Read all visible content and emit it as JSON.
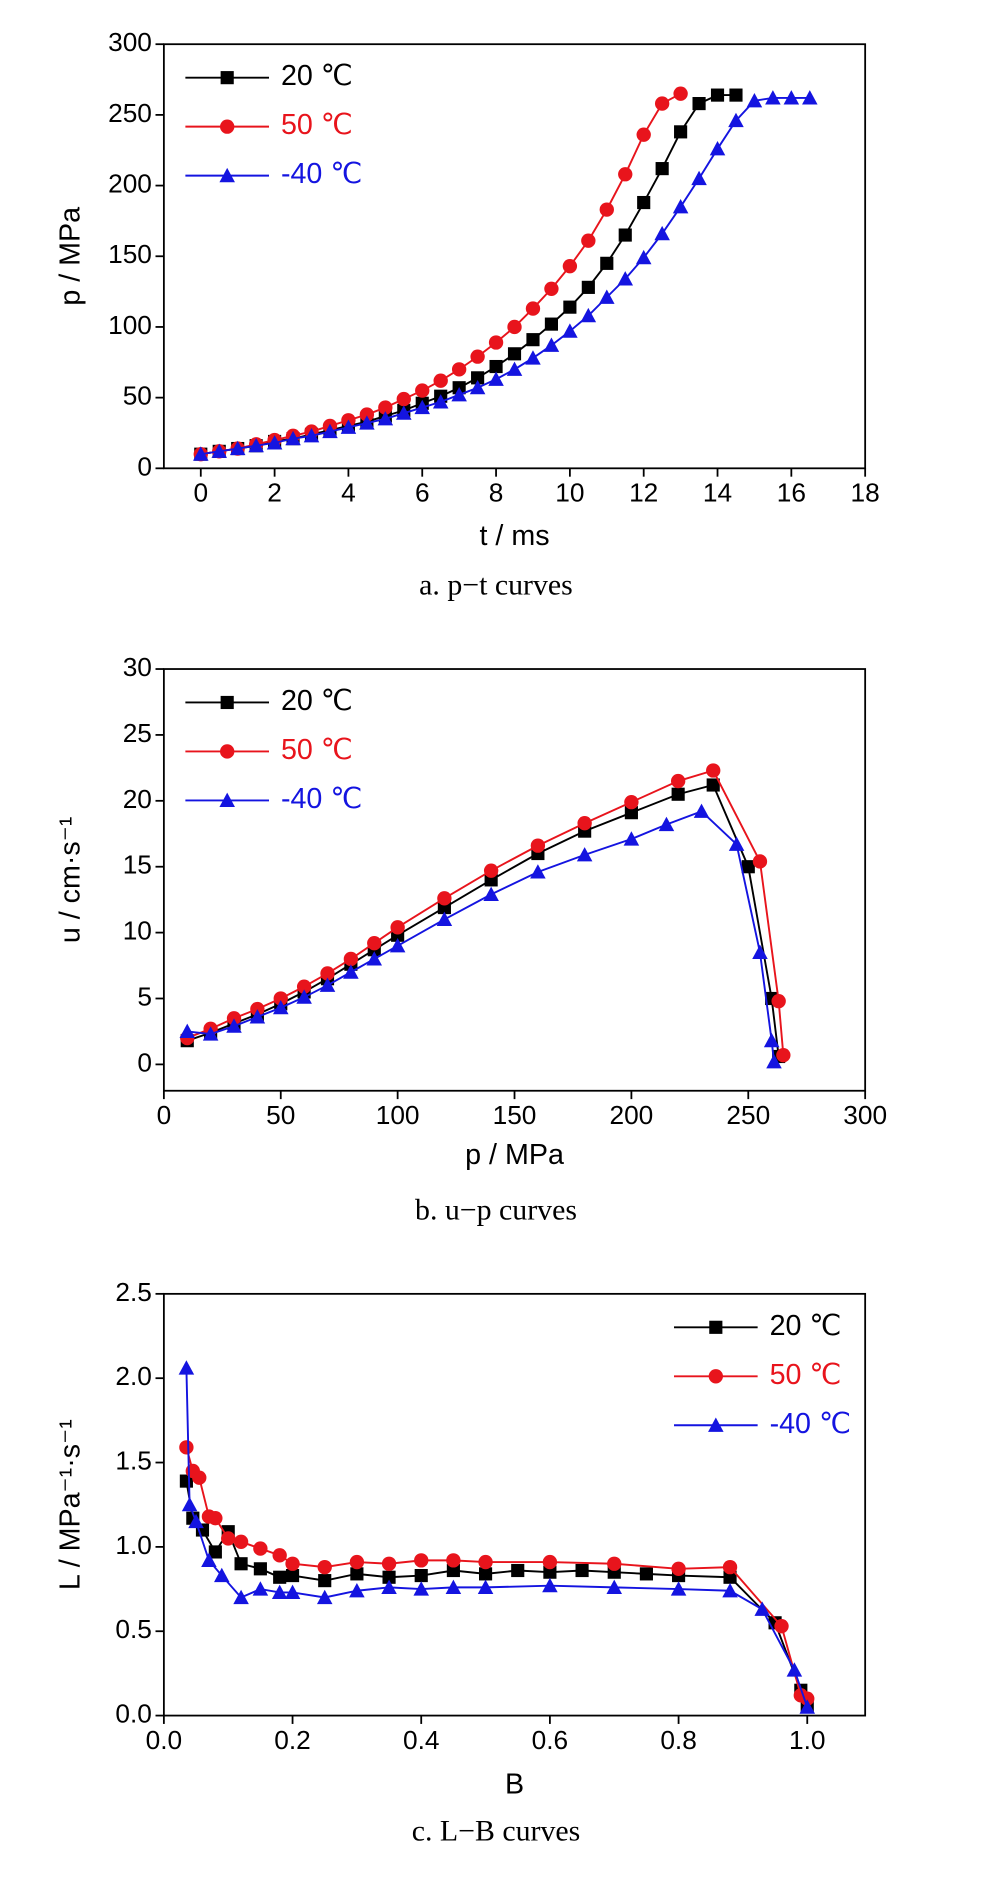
{
  "chart_data": [
    {
      "type": "line",
      "caption": "a.    p−t curves",
      "xlabel": "t / ms",
      "ylabel": "p / MPa",
      "xlim": [
        -1,
        18
      ],
      "ylim": [
        0,
        300
      ],
      "xticks": [
        0,
        2,
        4,
        6,
        8,
        10,
        12,
        14,
        16,
        18
      ],
      "yticks": [
        0,
        50,
        100,
        150,
        200,
        250,
        300
      ],
      "legend": "upper left",
      "series": [
        {
          "name": "20 ℃",
          "color": "#000000",
          "marker": "square",
          "x": [
            0,
            0.5,
            1,
            1.5,
            2,
            2.5,
            3,
            3.5,
            4,
            4.5,
            5,
            5.5,
            6,
            6.5,
            7,
            7.5,
            8,
            8.5,
            9,
            9.5,
            10,
            10.5,
            11,
            11.5,
            12,
            12.5,
            13,
            13.5,
            14,
            14.5
          ],
          "values": [
            10,
            12,
            14,
            16,
            19,
            21,
            24,
            27,
            30,
            33,
            37,
            41,
            46,
            51,
            57,
            64,
            72,
            81,
            91,
            102,
            114,
            128,
            145,
            165,
            188,
            212,
            238,
            258,
            264,
            264
          ]
        },
        {
          "name": "50 ℃",
          "color": "#e8141c",
          "marker": "circle",
          "x": [
            0,
            0.5,
            1,
            1.5,
            2,
            2.5,
            3,
            3.5,
            4,
            4.5,
            5,
            5.5,
            6,
            6.5,
            7,
            7.5,
            8,
            8.5,
            9,
            9.5,
            10,
            10.5,
            11,
            11.5,
            12,
            12.5,
            13
          ],
          "values": [
            10,
            12,
            14,
            17,
            20,
            23,
            26,
            30,
            34,
            38,
            43,
            49,
            55,
            62,
            70,
            79,
            89,
            100,
            113,
            127,
            143,
            161,
            183,
            208,
            236,
            258,
            265
          ]
        },
        {
          "name": "-40 ℃",
          "color": "#1414e0",
          "marker": "triangle",
          "x": [
            0,
            0.5,
            1,
            1.5,
            2,
            2.5,
            3,
            3.5,
            4,
            4.5,
            5,
            5.5,
            6,
            6.5,
            7,
            7.5,
            8,
            8.5,
            9,
            9.5,
            10,
            10.5,
            11,
            11.5,
            12,
            12.5,
            13,
            13.5,
            14,
            14.5,
            15,
            15.5,
            16,
            16.5
          ],
          "values": [
            10,
            12,
            14,
            16,
            18,
            21,
            23,
            26,
            29,
            32,
            35,
            39,
            43,
            47,
            52,
            57,
            63,
            70,
            78,
            87,
            97,
            108,
            121,
            134,
            149,
            166,
            185,
            205,
            226,
            246,
            260,
            262,
            262,
            262
          ]
        }
      ]
    },
    {
      "type": "line",
      "caption": "b.    u−p curves",
      "xlabel": "p / MPa",
      "ylabel": "u / cm·s⁻¹",
      "xlim": [
        0,
        300
      ],
      "ylim": [
        -2,
        30
      ],
      "xticks": [
        0,
        50,
        100,
        150,
        200,
        250,
        300
      ],
      "yticks": [
        0,
        5,
        10,
        15,
        20,
        25,
        30
      ],
      "legend": "upper left",
      "series": [
        {
          "name": "20 ℃",
          "color": "#000000",
          "marker": "square",
          "x": [
            10,
            20,
            30,
            40,
            50,
            60,
            70,
            80,
            90,
            100,
            120,
            140,
            160,
            180,
            200,
            220,
            235,
            250,
            260,
            263
          ],
          "values": [
            1.8,
            2.4,
            3.1,
            3.8,
            4.6,
            5.5,
            6.5,
            7.6,
            8.7,
            9.8,
            11.9,
            14.0,
            16.0,
            17.7,
            19.1,
            20.5,
            21.2,
            15.0,
            5.0,
            0.6
          ]
        },
        {
          "name": "50 ℃",
          "color": "#e8141c",
          "marker": "circle",
          "x": [
            10,
            20,
            30,
            40,
            50,
            60,
            70,
            80,
            90,
            100,
            120,
            140,
            160,
            180,
            200,
            220,
            235,
            255,
            263,
            265
          ],
          "values": [
            2.0,
            2.7,
            3.5,
            4.2,
            5.0,
            5.9,
            6.9,
            8.0,
            9.2,
            10.4,
            12.6,
            14.7,
            16.6,
            18.3,
            19.9,
            21.5,
            22.3,
            15.4,
            4.8,
            0.7
          ]
        },
        {
          "name": "-40 ℃",
          "color": "#1414e0",
          "marker": "triangle",
          "x": [
            10,
            20,
            30,
            40,
            50,
            60,
            70,
            80,
            90,
            100,
            120,
            140,
            160,
            180,
            200,
            215,
            230,
            245,
            255,
            260,
            261
          ],
          "values": [
            2.5,
            2.3,
            2.9,
            3.6,
            4.3,
            5.1,
            6.0,
            7.0,
            8.0,
            9.0,
            11.0,
            12.9,
            14.6,
            15.9,
            17.1,
            18.2,
            19.2,
            16.7,
            8.5,
            1.8,
            0.2
          ]
        }
      ]
    },
    {
      "type": "line",
      "caption": "c.    L−B curves",
      "xlabel": "B",
      "ylabel": "L / MPa⁻¹·s⁻¹",
      "xlim": [
        0,
        1.09
      ],
      "ylim": [
        0,
        2.5
      ],
      "xticks": [
        {
          "value": 0,
          "label": "0.0"
        },
        0.2,
        0.4,
        0.6,
        0.8,
        {
          "value": 1,
          "label": "1.0"
        }
      ],
      "yticks": [
        {
          "value": 0,
          "label": "0.0"
        },
        0.5,
        {
          "value": 1,
          "label": "1.0"
        },
        1.5,
        {
          "value": 2,
          "label": "2.0"
        },
        2.5
      ],
      "legend": "upper right",
      "series": [
        {
          "name": "20 ℃",
          "color": "#000000",
          "marker": "square",
          "x": [
            0.035,
            0.045,
            0.06,
            0.08,
            0.1,
            0.12,
            0.15,
            0.18,
            0.2,
            0.25,
            0.3,
            0.35,
            0.4,
            0.45,
            0.5,
            0.55,
            0.6,
            0.65,
            0.7,
            0.75,
            0.8,
            0.88,
            0.95,
            0.99,
            1.0
          ],
          "values": [
            1.39,
            1.17,
            1.1,
            0.97,
            1.09,
            0.9,
            0.87,
            0.82,
            0.83,
            0.8,
            0.84,
            0.82,
            0.83,
            0.86,
            0.84,
            0.86,
            0.85,
            0.86,
            0.85,
            0.84,
            0.83,
            0.82,
            0.55,
            0.15,
            0.06
          ]
        },
        {
          "name": "50 ℃",
          "color": "#e8141c",
          "marker": "circle",
          "x": [
            0.035,
            0.045,
            0.055,
            0.07,
            0.08,
            0.1,
            0.12,
            0.15,
            0.18,
            0.2,
            0.25,
            0.3,
            0.35,
            0.4,
            0.45,
            0.5,
            0.6,
            0.7,
            0.8,
            0.88,
            0.96,
            0.99,
            1.0
          ],
          "values": [
            1.59,
            1.45,
            1.41,
            1.18,
            1.17,
            1.05,
            1.03,
            0.99,
            0.95,
            0.9,
            0.88,
            0.91,
            0.9,
            0.92,
            0.92,
            0.91,
            0.91,
            0.9,
            0.87,
            0.88,
            0.53,
            0.12,
            0.1
          ]
        },
        {
          "name": "-40 ℃",
          "color": "#1414e0",
          "marker": "triangle",
          "x": [
            0.035,
            0.04,
            0.05,
            0.07,
            0.09,
            0.12,
            0.15,
            0.18,
            0.2,
            0.25,
            0.3,
            0.35,
            0.4,
            0.45,
            0.5,
            0.6,
            0.7,
            0.8,
            0.88,
            0.93,
            0.98,
            1.0
          ],
          "values": [
            2.06,
            1.25,
            1.15,
            0.92,
            0.83,
            0.7,
            0.75,
            0.73,
            0.73,
            0.7,
            0.74,
            0.76,
            0.75,
            0.76,
            0.76,
            0.77,
            0.76,
            0.75,
            0.74,
            0.63,
            0.27,
            0.05
          ]
        }
      ]
    }
  ]
}
